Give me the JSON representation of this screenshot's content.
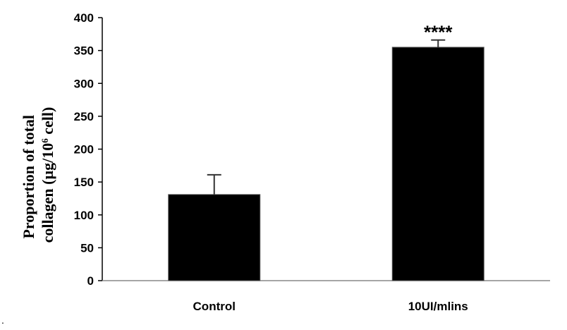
{
  "chart_data": {
    "type": "bar",
    "categories": [
      "Control",
      "10UI/mlins"
    ],
    "values": [
      131,
      355
    ],
    "errors": [
      30,
      11
    ],
    "ylabel_line1": "Proportion of total",
    "ylabel_line2_pre": "collagen (µg/10",
    "ylabel_line2_sup": "6",
    "ylabel_line2_post": " cell)",
    "ylim": [
      0,
      400
    ],
    "yticks": [
      "0",
      "50",
      "100",
      "150",
      "200",
      "250",
      "300",
      "350",
      "400"
    ],
    "annotations": [
      "",
      "****"
    ],
    "bar_color": "#000000",
    "grid": false,
    "legend": "none"
  },
  "stray_mark": "."
}
